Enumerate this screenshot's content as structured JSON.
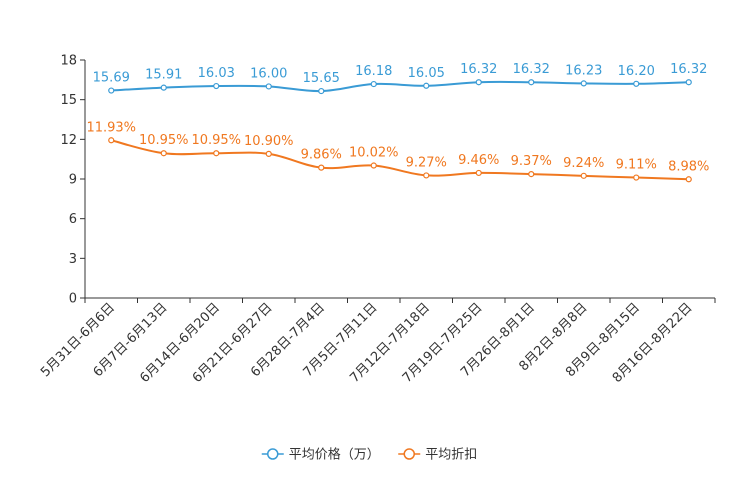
{
  "chart_data": {
    "type": "line",
    "categories": [
      "5月31日-6月6日",
      "6月7日-6月13日",
      "6月14日-6月20日",
      "6月21日-6月27日",
      "6月28日-7月4日",
      "7月5日-7月11日",
      "7月12日-7月18日",
      "7月19日-7月25日",
      "7月26日-8月1日",
      "8月2日-8月8日",
      "8月9日-8月15日",
      "8月16日-8月22日"
    ],
    "ylim": [
      0,
      18
    ],
    "yticks": [
      0,
      3,
      6,
      9,
      12,
      15,
      18
    ],
    "ytick_labels": [
      "0",
      "3",
      "6",
      "9",
      "12",
      "15",
      "18"
    ],
    "series": [
      {
        "name": "平均价格（万）",
        "color": "#3a9bd5",
        "values": [
          15.69,
          15.91,
          16.03,
          16.0,
          15.65,
          16.18,
          16.05,
          16.32,
          16.32,
          16.23,
          16.2,
          16.32
        ],
        "labels": [
          "15.69",
          "15.91",
          "16.03",
          "16.00",
          "15.65",
          "16.18",
          "16.05",
          "16.32",
          "16.32",
          "16.23",
          "16.20",
          "16.32"
        ]
      },
      {
        "name": "平均折扣",
        "color": "#f07820",
        "values": [
          11.93,
          10.95,
          10.95,
          10.9,
          9.86,
          10.02,
          9.27,
          9.46,
          9.37,
          9.24,
          9.11,
          8.98
        ],
        "labels": [
          "11.93%",
          "10.95%",
          "10.95%",
          "10.90%",
          "9.86%",
          "10.02%",
          "9.27%",
          "9.46%",
          "9.37%",
          "9.24%",
          "9.11%",
          "8.98%"
        ]
      }
    ],
    "legend_position": "bottom-center"
  }
}
